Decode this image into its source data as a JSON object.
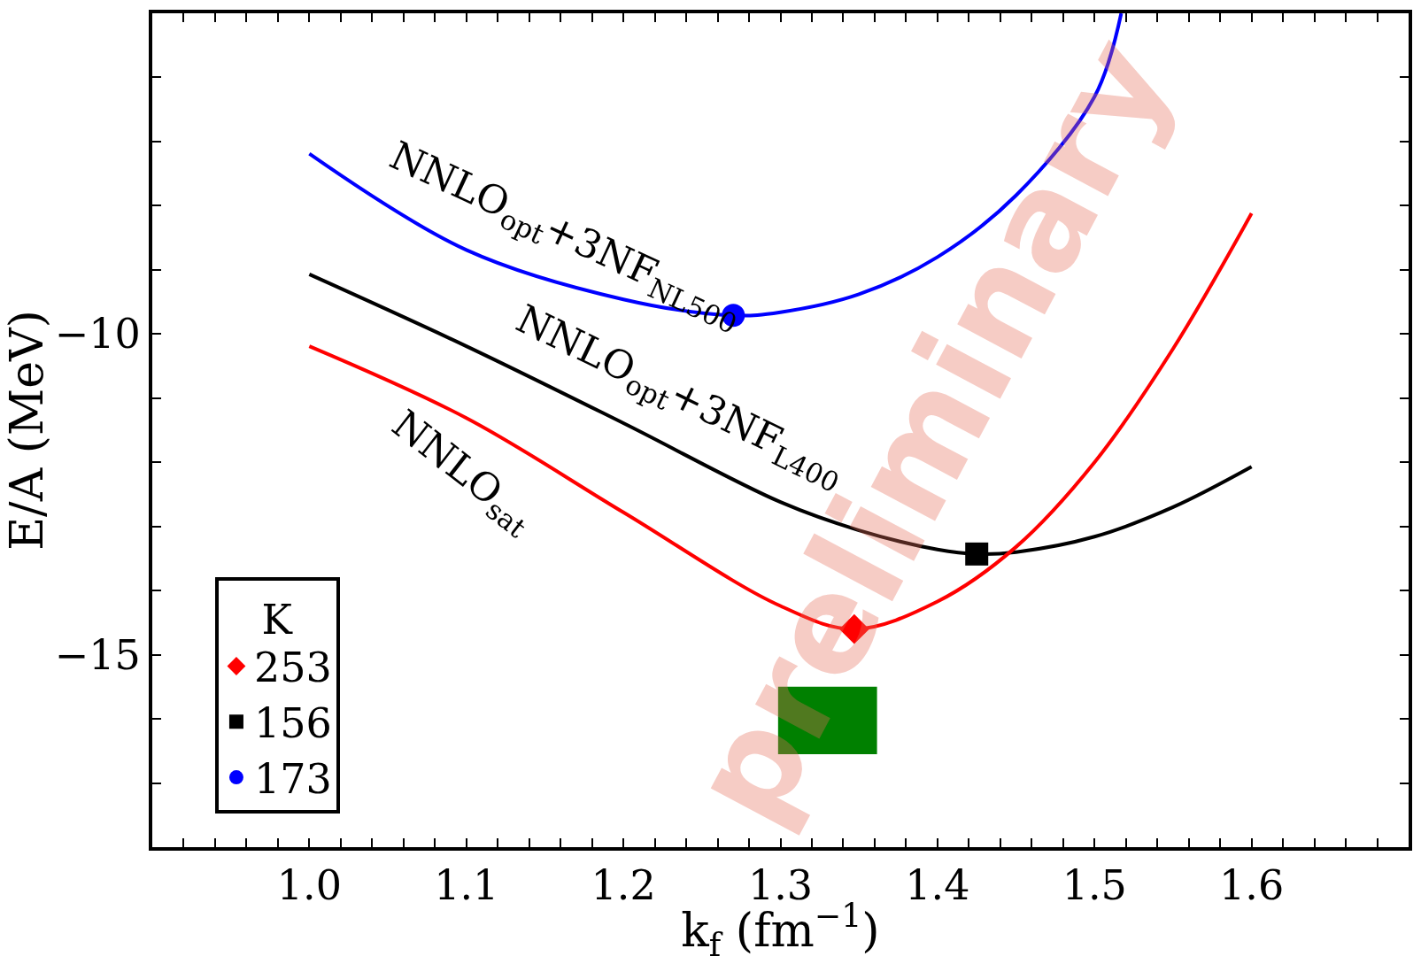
{
  "chart_data": {
    "type": "line",
    "xlabel": "k$_{f}$ (fm$^{−1}$)",
    "ylabel": "E/A (MeV)",
    "legend_title": "K",
    "legend": "bottom left",
    "xlim": [
      0.9,
      1.7
    ],
    "ylim": [
      -18,
      -5
    ],
    "xticks": [
      {
        "value": 0.92,
        "label": null
      },
      {
        "value": 0.94,
        "label": null
      },
      {
        "value": 0.96,
        "label": null
      },
      {
        "value": 0.98,
        "label": null
      },
      {
        "value": 1.0,
        "label": "1.0"
      },
      {
        "value": 1.02,
        "label": null
      },
      {
        "value": 1.04,
        "label": null
      },
      {
        "value": 1.06,
        "label": null
      },
      {
        "value": 1.08,
        "label": null
      },
      {
        "value": 1.1,
        "label": "1.1"
      },
      {
        "value": 1.12,
        "label": null
      },
      {
        "value": 1.14,
        "label": null
      },
      {
        "value": 1.16,
        "label": null
      },
      {
        "value": 1.18,
        "label": null
      },
      {
        "value": 1.2,
        "label": "1.2"
      },
      {
        "value": 1.22,
        "label": null
      },
      {
        "value": 1.24,
        "label": null
      },
      {
        "value": 1.26,
        "label": null
      },
      {
        "value": 1.28,
        "label": null
      },
      {
        "value": 1.3,
        "label": "1.3"
      },
      {
        "value": 1.32,
        "label": null
      },
      {
        "value": 1.34,
        "label": null
      },
      {
        "value": 1.36,
        "label": null
      },
      {
        "value": 1.38,
        "label": null
      },
      {
        "value": 1.4,
        "label": "1.4"
      },
      {
        "value": 1.42,
        "label": null
      },
      {
        "value": 1.44,
        "label": null
      },
      {
        "value": 1.46,
        "label": null
      },
      {
        "value": 1.48,
        "label": null
      },
      {
        "value": 1.5,
        "label": "1.5"
      },
      {
        "value": 1.52,
        "label": null
      },
      {
        "value": 1.54,
        "label": null
      },
      {
        "value": 1.56,
        "label": null
      },
      {
        "value": 1.58,
        "label": null
      },
      {
        "value": 1.6,
        "label": "1.6"
      },
      {
        "value": 1.62,
        "label": null
      },
      {
        "value": 1.64,
        "label": null
      },
      {
        "value": 1.66,
        "label": null
      },
      {
        "value": 1.68,
        "label": null
      }
    ],
    "yticks": [
      {
        "value": -17,
        "label": null
      },
      {
        "value": -16,
        "label": null
      },
      {
        "value": -15,
        "label": "−15"
      },
      {
        "value": -14,
        "label": null
      },
      {
        "value": -13,
        "label": null
      },
      {
        "value": -12,
        "label": null
      },
      {
        "value": -11,
        "label": null
      },
      {
        "value": -10,
        "label": "−10"
      },
      {
        "value": -9,
        "label": null
      },
      {
        "value": -8,
        "label": null
      },
      {
        "value": -7,
        "label": null
      },
      {
        "value": -6,
        "label": null
      }
    ],
    "series": [
      {
        "color": "#0000ff",
        "x": [
          1.0,
          1.1,
          1.2,
          1.27,
          1.3,
          1.35,
          1.4,
          1.45,
          1.5,
          1.517
        ],
        "values": [
          -7.19,
          -8.69,
          -9.46,
          -9.71,
          -9.66,
          -9.38,
          -8.8,
          -7.84,
          -6.3,
          -5.0
        ]
      },
      {
        "color": "#000000",
        "x": [
          1.0,
          1.1,
          1.2,
          1.3,
          1.35,
          1.4,
          1.425,
          1.45,
          1.5,
          1.55,
          1.6
        ],
        "values": [
          -9.07,
          -10.19,
          -11.39,
          -12.62,
          -13.06,
          -13.36,
          -13.43,
          -13.4,
          -13.16,
          -12.7,
          -12.07
        ]
      },
      {
        "color": "#ff0000",
        "x": [
          1.0,
          1.1,
          1.2,
          1.3,
          1.347,
          1.4,
          1.45,
          1.5,
          1.55,
          1.6
        ],
        "values": [
          -10.19,
          -11.31,
          -12.78,
          -14.24,
          -14.6,
          -14.17,
          -13.32,
          -12.0,
          -10.23,
          -8.12
        ]
      },
      {
        "type": "scatter",
        "name": "253",
        "color": "#ff0000",
        "marker": "diamond",
        "x": [
          1.347
        ],
        "values": [
          -14.6
        ]
      },
      {
        "type": "scatter",
        "name": "156",
        "color": "#000000",
        "marker": "square",
        "x": [
          1.425
        ],
        "values": [
          -13.43
        ]
      },
      {
        "type": "scatter",
        "name": "173",
        "color": "#0000ff",
        "marker": "circle",
        "x": [
          1.27
        ],
        "values": [
          -9.71
        ]
      },
      {
        "type": "bar",
        "color": "#008000",
        "x": [
          1.33
        ],
        "base": [
          -16.55
        ],
        "values": [
          1.05
        ]
      }
    ],
    "annotations": [
      "NNLO$_{opt}$+3NF$_{NL500}$",
      "NNLO$_{opt}$+3NF$_{L400}$",
      "NNLO$_{sat}$",
      "preliminary"
    ]
  }
}
